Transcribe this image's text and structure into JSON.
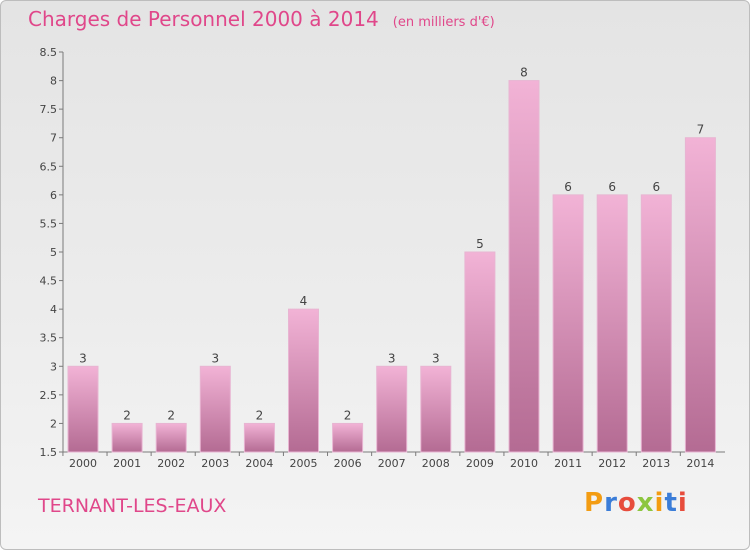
{
  "header": {
    "title": "Charges de Personnel 2000 à 2014",
    "subtitle": "(en milliers d'€)"
  },
  "footer": {
    "city": "TERNANT-LES-EAUX",
    "logo_text": "Proxiti"
  },
  "colors": {
    "accent": "#e0478a",
    "bar_light": "#f2b3d6",
    "bar_dark": "#b46b93",
    "logo": [
      "#f39c12",
      "#3b7dd8",
      "#e74c3c",
      "#8dc63f",
      "#f39c12",
      "#3b7dd8",
      "#e74c3c"
    ]
  },
  "chart_data": {
    "type": "bar",
    "title": "Charges de Personnel 2000 à 2014",
    "subtitle": "(en milliers d'€)",
    "categories": [
      "2000",
      "2001",
      "2002",
      "2003",
      "2004",
      "2005",
      "2006",
      "2007",
      "2008",
      "2009",
      "2010",
      "2011",
      "2012",
      "2013",
      "2014"
    ],
    "values": [
      3,
      2,
      2,
      3,
      2,
      4,
      2,
      3,
      3,
      5,
      8,
      6,
      6,
      6,
      7
    ],
    "ylim": [
      1.5,
      8.5
    ],
    "yticks": [
      "1.5",
      "2",
      "2.5",
      "3",
      "3.5",
      "4",
      "4.5",
      "5",
      "5.5",
      "6",
      "6.5",
      "7",
      "7.5",
      "8",
      "8.5"
    ],
    "xlabel": "",
    "ylabel": "",
    "grid": false,
    "legend": "none"
  }
}
